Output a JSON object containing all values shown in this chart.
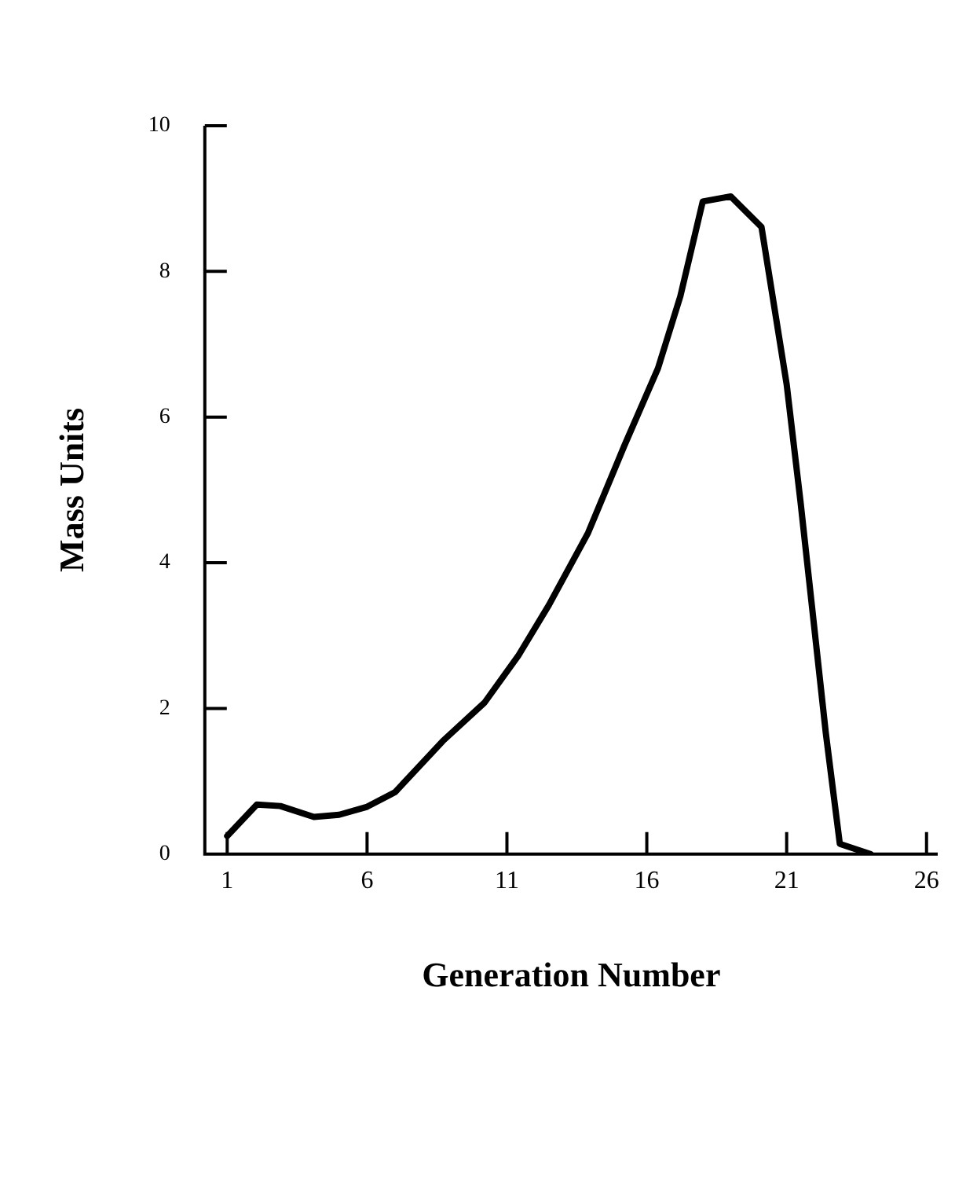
{
  "chart_data": {
    "type": "line",
    "xlabel": "Generation Number",
    "ylabel": "Mass Units",
    "series": [
      {
        "color": "#000000",
        "x": [
          1,
          2.06,
          2.9,
          4.1,
          5.0,
          6.0,
          7.0,
          8.7,
          10.2,
          11.4,
          12.5,
          13.9,
          15.2,
          16.4,
          17.2,
          18.0,
          19.0,
          20.1,
          21.0,
          21.5,
          22.4,
          22.9,
          24.0
        ],
        "values": [
          0.25,
          0.68,
          0.66,
          0.51,
          0.54,
          0.65,
          0.85,
          1.55,
          2.08,
          2.72,
          3.42,
          4.41,
          5.61,
          6.67,
          7.66,
          8.96,
          9.03,
          8.61,
          6.45,
          4.82,
          1.66,
          0.14,
          0
        ]
      }
    ],
    "xlim": [
      0.2,
      26.4
    ],
    "xticks": [
      1,
      6,
      11,
      16,
      21,
      26
    ],
    "ylim": [
      0,
      10
    ],
    "yticks": [
      0,
      2,
      4,
      6,
      8,
      10
    ],
    "grid": false,
    "legend": false,
    "marker": "none",
    "line_style": "solid"
  }
}
